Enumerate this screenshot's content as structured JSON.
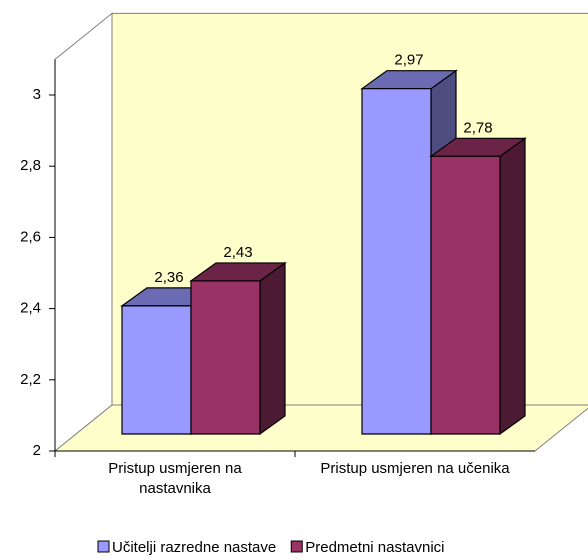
{
  "chart_data": {
    "type": "bar3d",
    "categories": [
      "Pristup usmjeren na nastavnika",
      "Pristup usmjeren na učenika"
    ],
    "series": [
      {
        "name": "Učitelji razredne nastave",
        "color": "#9999ff",
        "values": [
          2.36,
          2.97
        ],
        "value_labels": [
          "2,36",
          "2,97"
        ]
      },
      {
        "name": "Predmetni nastavnici",
        "color": "#993366",
        "values": [
          2.43,
          2.78
        ],
        "value_labels": [
          "2,43",
          "2,78"
        ]
      }
    ],
    "ylim": [
      2,
      3.1
    ],
    "yticks": [
      2,
      {
        "value": 2.2,
        "label": "2,2"
      },
      {
        "value": 2.4,
        "label": "2,4"
      },
      {
        "value": 2.6,
        "label": "2,6"
      },
      {
        "value": 2.8,
        "label": "2,8"
      },
      3
    ],
    "wall_color": "#ffffcc",
    "legend": "bottom"
  }
}
